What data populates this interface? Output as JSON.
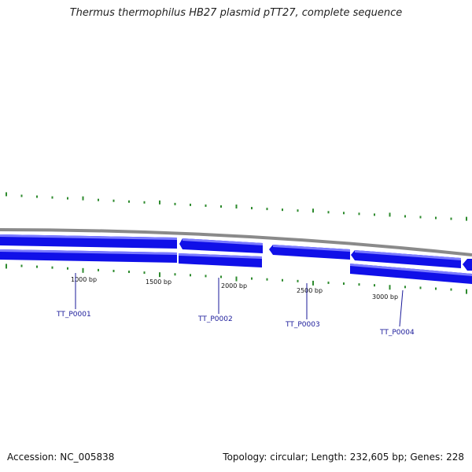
{
  "title": "Thermus thermophilus HB27 plasmid pTT27, complete sequence",
  "footer": {
    "accession": "Accession: NC_005838",
    "topology": "Topology: circular; Length: 232,605 bp; Genes: 228"
  },
  "colors": {
    "gene": "#1010e8",
    "gene_highlight": "#7a7aff",
    "backbone": "#8a8a8a",
    "gc_ticks": "#2e8b2e",
    "label": "#1a1a9a"
  },
  "ticks": [
    {
      "label": "1000 bp",
      "bp": 1000
    },
    {
      "label": "1500 bp",
      "bp": 1500
    },
    {
      "label": "2000 bp",
      "bp": 2000
    },
    {
      "label": "2500 bp",
      "bp": 2500
    },
    {
      "label": "3000 bp",
      "bp": 3000
    }
  ],
  "genes": [
    {
      "name": "TT_P0001",
      "strand": "forward"
    },
    {
      "name": "TT_P0002",
      "strand": "reverse"
    },
    {
      "name": "TT_P0003",
      "strand": "reverse"
    },
    {
      "name": "TT_P0004",
      "strand": "reverse"
    }
  ]
}
